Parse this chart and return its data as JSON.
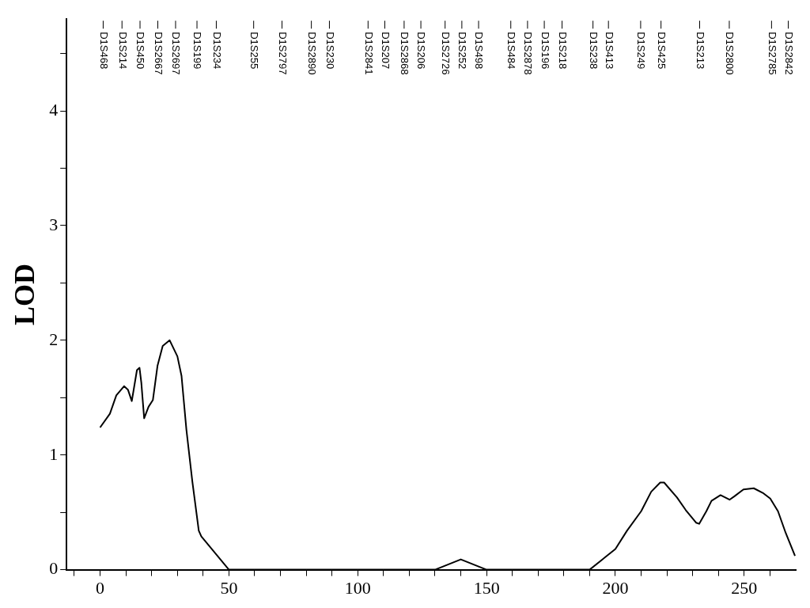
{
  "chart_data": {
    "type": "line",
    "ylabel": "LOD",
    "color": "#000000",
    "x": [
      0,
      3.8,
      6.3,
      9.3,
      10.8,
      12.3,
      14.3,
      15.3,
      16.0,
      17.1,
      18.8,
      20.5,
      22.3,
      24.3,
      27.0,
      30.0,
      31.6,
      33.5,
      35.8,
      38.3,
      39.3,
      50,
      130,
      140,
      150,
      190,
      200,
      204.5,
      210,
      213.9,
      217.4,
      218.9,
      223.9,
      227.3,
      231.3,
      232.5,
      235.3,
      237.3,
      240.8,
      244.3,
      246.2,
      249.7,
      253.7,
      257.2,
      260.1,
      263.1,
      266.1,
      269.7
    ],
    "values": [
      1.24,
      1.36,
      1.52,
      1.6,
      1.57,
      1.47,
      1.74,
      1.76,
      1.63,
      1.32,
      1.42,
      1.48,
      1.78,
      1.95,
      2.0,
      1.86,
      1.69,
      1.22,
      0.77,
      0.34,
      0.29,
      0,
      0,
      0.09,
      0,
      0,
      0.18,
      0.34,
      0.51,
      0.68,
      0.76,
      0.76,
      0.63,
      0.52,
      0.41,
      0.4,
      0.51,
      0.6,
      0.65,
      0.61,
      0.64,
      0.7,
      0.71,
      0.67,
      0.62,
      0.51,
      0.32,
      0.12
    ],
    "xlim": [
      -13,
      270
    ],
    "xticks": [
      {
        "value": -10,
        "label": null
      },
      0,
      {
        "value": 10,
        "label": null
      },
      {
        "value": 20,
        "label": null
      },
      {
        "value": 30,
        "label": null
      },
      {
        "value": 40,
        "label": null
      },
      50,
      {
        "value": 60,
        "label": null
      },
      {
        "value": 70,
        "label": null
      },
      {
        "value": 80,
        "label": null
      },
      {
        "value": 90,
        "label": null
      },
      100,
      {
        "value": 110,
        "label": null
      },
      {
        "value": 120,
        "label": null
      },
      {
        "value": 130,
        "label": null
      },
      {
        "value": 140,
        "label": null
      },
      150,
      {
        "value": 160,
        "label": null
      },
      {
        "value": 170,
        "label": null
      },
      {
        "value": 180,
        "label": null
      },
      {
        "value": 190,
        "label": null
      },
      200,
      {
        "value": 210,
        "label": null
      },
      {
        "value": 220,
        "label": null
      },
      {
        "value": 230,
        "label": null
      },
      {
        "value": 240,
        "label": null
      },
      250,
      {
        "value": 260,
        "label": null
      }
    ],
    "ylim": [
      0,
      4.8
    ],
    "yticks": [
      0,
      {
        "value": 0.5,
        "label": null
      },
      1,
      {
        "value": 1.5,
        "label": null
      },
      2,
      {
        "value": 2.5,
        "label": null
      },
      3,
      {
        "value": 3.5,
        "label": null
      },
      4,
      {
        "value": 4.5,
        "label": null
      }
    ],
    "grid": false,
    "legend": false,
    "marker": "none",
    "line_style": "solid",
    "ref_lines": [
      {
        "axis": "x",
        "value": 1.2,
        "label": "D1S468"
      },
      {
        "axis": "x",
        "value": 8.5,
        "label": "D1S214"
      },
      {
        "axis": "x",
        "value": 15.5,
        "label": "D1S450"
      },
      {
        "axis": "x",
        "value": 22.4,
        "label": "D1S2667"
      },
      {
        "axis": "x",
        "value": 29.3,
        "label": "D1S2697"
      },
      {
        "axis": "x",
        "value": 37.6,
        "label": "D1S199"
      },
      {
        "axis": "x",
        "value": 45.1,
        "label": "D1S234"
      },
      {
        "axis": "x",
        "value": 59.6,
        "label": "D1S255"
      },
      {
        "axis": "x",
        "value": 70.6,
        "label": "D1S2797"
      },
      {
        "axis": "x",
        "value": 82.0,
        "label": "D1S2890"
      },
      {
        "axis": "x",
        "value": 89.0,
        "label": "D1S230"
      },
      {
        "axis": "x",
        "value": 104.0,
        "label": "D1S2841"
      },
      {
        "axis": "x",
        "value": 110.5,
        "label": "D1S207"
      },
      {
        "axis": "x",
        "value": 118.0,
        "label": "D1S2868"
      },
      {
        "axis": "x",
        "value": 124.5,
        "label": "D1S206"
      },
      {
        "axis": "x",
        "value": 133.9,
        "label": "D1S2726"
      },
      {
        "axis": "x",
        "value": 140.4,
        "label": "D1S252"
      },
      {
        "axis": "x",
        "value": 146.9,
        "label": "D1S498"
      },
      {
        "axis": "x",
        "value": 159.4,
        "label": "D1S484"
      },
      {
        "axis": "x",
        "value": 165.9,
        "label": "D1S2878"
      },
      {
        "axis": "x",
        "value": 172.4,
        "label": "D1S196"
      },
      {
        "axis": "x",
        "value": 179.3,
        "label": "D1S218"
      },
      {
        "axis": "x",
        "value": 191.3,
        "label": "D1S238"
      },
      {
        "axis": "x",
        "value": 197.3,
        "label": "D1S413"
      },
      {
        "axis": "x",
        "value": 209.8,
        "label": "D1S249"
      },
      {
        "axis": "x",
        "value": 217.7,
        "label": "D1S425"
      },
      {
        "axis": "x",
        "value": 232.7,
        "label": "D1S213"
      },
      {
        "axis": "x",
        "value": 244.2,
        "label": "D1S2800"
      },
      {
        "axis": "x",
        "value": 260.6,
        "label": "D1S2785"
      },
      {
        "axis": "x",
        "value": 267.1,
        "label": "D1S2842"
      }
    ]
  }
}
